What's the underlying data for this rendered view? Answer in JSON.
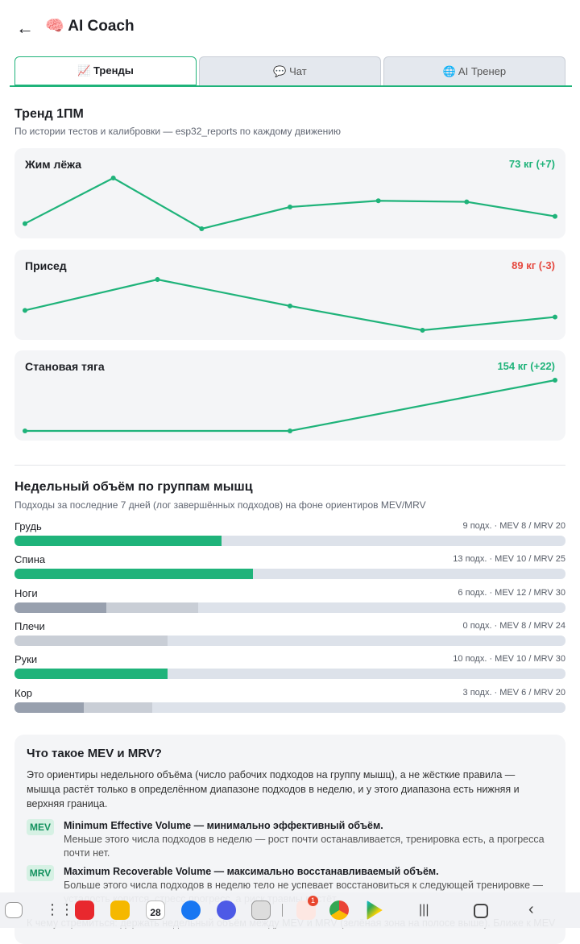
{
  "header": {
    "back": "←",
    "title": "🧠 AI Coach"
  },
  "tabs": [
    {
      "label": "📈 Тренды",
      "active": true
    },
    {
      "label": "💬 Чат",
      "active": false
    },
    {
      "label": "🌐 AI Тренер",
      "active": false
    }
  ],
  "trend": {
    "title": "Тренд 1ПМ",
    "subtitle": "По истории тестов и калибровки — esp32_reports по каждому движению",
    "cards": [
      {
        "name": "Жим лёжа",
        "summary": "73 кг (+7)",
        "direction": "up",
        "values": [
          66,
          110,
          61,
          82,
          88,
          87,
          73
        ]
      },
      {
        "name": "Присед",
        "summary": "89 кг (-3)",
        "direction": "down",
        "values": [
          92,
          106,
          94,
          83,
          89
        ]
      },
      {
        "name": "Становая тяга",
        "summary": "154 кг (+22)",
        "direction": "up",
        "values": [
          132,
          132,
          154
        ]
      }
    ]
  },
  "volume": {
    "title": "Недельный объём по группам мышц",
    "subtitle": "Подходы за последние 7 дней (лог завершённых подходов) на фоне ориентиров MEV/MRV",
    "groups": [
      {
        "name": "Грудь",
        "stats": "9 подх. · MEV 8 / MRV 20",
        "sets": 9,
        "mev": 8,
        "mrv": 20
      },
      {
        "name": "Спина",
        "stats": "13 подх. · MEV 10 / MRV 25",
        "sets": 13,
        "mev": 10,
        "mrv": 25
      },
      {
        "name": "Ноги",
        "stats": "6 подх. · MEV 12 / MRV 30",
        "sets": 6,
        "mev": 12,
        "mrv": 30
      },
      {
        "name": "Плечи",
        "stats": "0 подх. · MEV 8 / MRV 24",
        "sets": 0,
        "mev": 8,
        "mrv": 24
      },
      {
        "name": "Руки",
        "stats": "10 подх. · MEV 10 / MRV 30",
        "sets": 10,
        "mev": 10,
        "mrv": 30
      },
      {
        "name": "Кор",
        "stats": "3 подх. · MEV 6 / MRV 20",
        "sets": 3,
        "mev": 6,
        "mrv": 20
      }
    ]
  },
  "info": {
    "title": "Что такое MEV и MRV?",
    "intro": "Это ориентиры недельного объёма (число рабочих подходов на группу мышц), а не жёсткие правила — мышца растёт только в определённом диапазоне подходов в неделю, и у этого диапазона есть нижняя и верхняя граница.",
    "terms": [
      {
        "badge": "MEV",
        "title": "Minimum Effective Volume — минимально эффективный объём.",
        "text": "Меньше этого числа подходов в неделю — рост почти останавливается, тренировка есть, а прогресса почти нет."
      },
      {
        "badge": "MRV",
        "title": "Maximum Recoverable Volume — максимально восстанавливаемый объём.",
        "text": "Больше этого числа подходов в неделю тело не успевает восстановиться к следующей тренировке — усталость копится, стресс прогресс, а риск травмы растёт."
      }
    ],
    "footer": "К чему стремиться: держать недельный объём между MEV и MRV (зелёная зона на полосе выше). Ближе к MEV"
  },
  "nav": {
    "calendar_day": "28",
    "badge": "1"
  }
}
